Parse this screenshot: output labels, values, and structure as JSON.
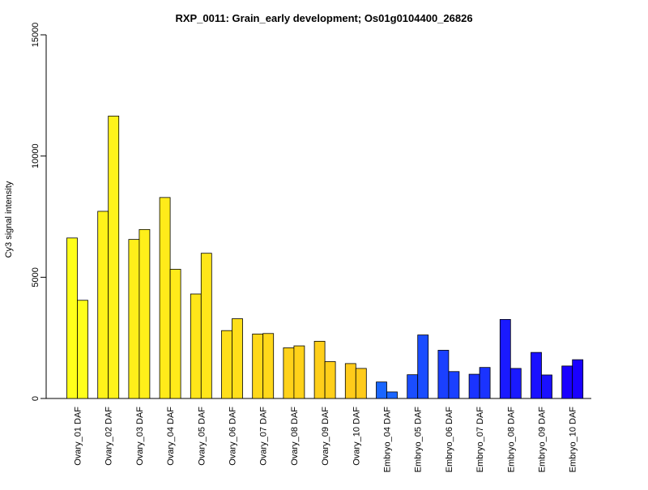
{
  "chart_data": {
    "type": "bar",
    "title": "RXP_0011: Grain_early development; Os01g0104400_26826",
    "xlabel": "",
    "ylabel": "Cy3 signal intensity",
    "ylim": [
      0,
      15000
    ],
    "yticks": [
      0,
      5000,
      10000,
      15000
    ],
    "grid": false,
    "categories": [
      "Ovary_01 DAF",
      "Ovary_02 DAF",
      "Ovary_03 DAF",
      "Ovary_04 DAF",
      "Ovary_05 DAF",
      "Ovary_06 DAF",
      "Ovary_07 DAF",
      "Ovary_08 DAF",
      "Ovary_09 DAF",
      "Ovary_10 DAF",
      "Embryo_04 DAF",
      "Embryo_05 DAF",
      "Embryo_06 DAF",
      "Embryo_07 DAF",
      "Embryo_08 DAF",
      "Embryo_09 DAF",
      "Embryo_10 DAF"
    ],
    "series": [
      {
        "values": [
          6620,
          7720,
          6560,
          8290,
          4310,
          2800,
          2660,
          2090,
          2360,
          1440,
          680,
          980,
          1990,
          1000,
          3260,
          1900,
          1340
        ]
      },
      {
        "values": [
          4050,
          11650,
          6970,
          5330,
          5990,
          3290,
          2680,
          2170,
          1520,
          1240,
          270,
          2620,
          1110,
          1280,
          1240,
          970,
          1600
        ]
      }
    ],
    "colors": [
      "#ffff1a",
      "#fff31a",
      "#ffef1a",
      "#ffeb1a",
      "#ffe61a",
      "#ffdf1a",
      "#ffd81a",
      "#ffd21a",
      "#ffcf1a",
      "#ffcb1a",
      "#1a66ff",
      "#1a4dff",
      "#1a40ff",
      "#1a33ff",
      "#1a1aff",
      "#1a10ff",
      "#1a00ff"
    ]
  }
}
